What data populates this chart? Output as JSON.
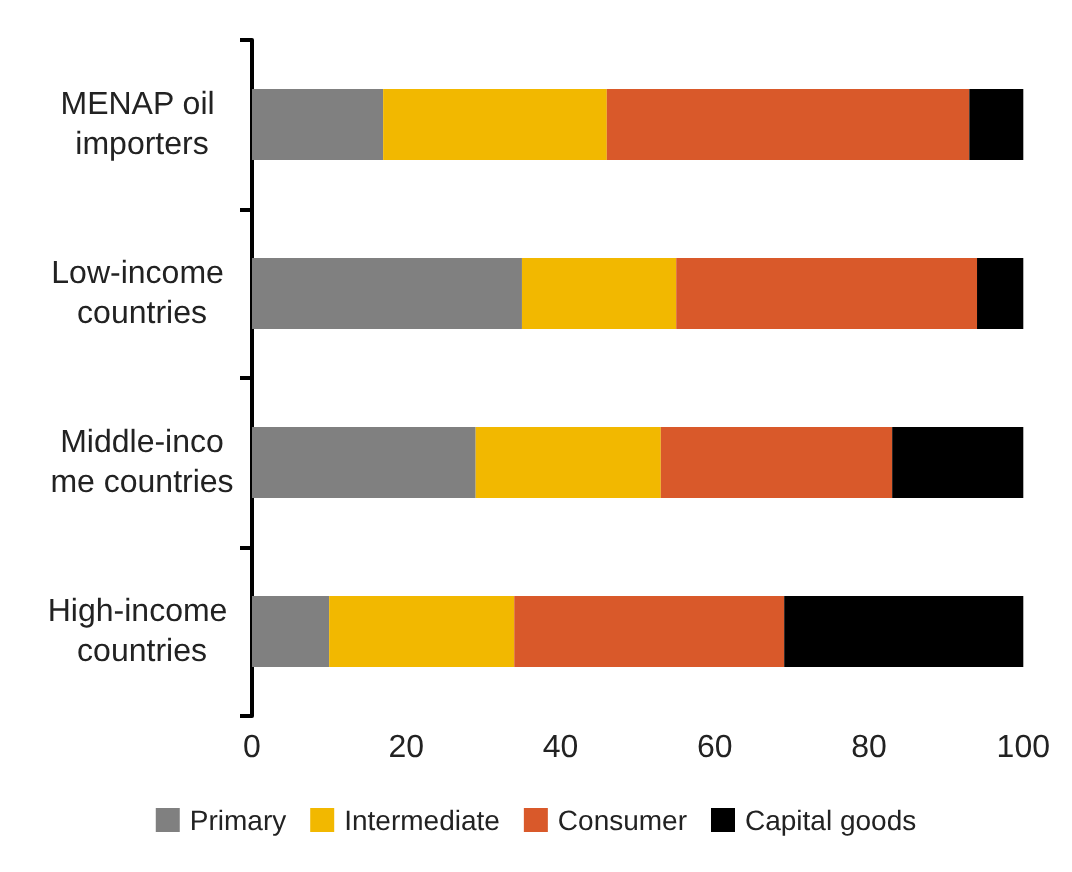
{
  "chart_data": {
    "type": "bar",
    "orientation": "horizontal",
    "stacked": true,
    "categories": [
      "MENAP oil importers",
      "Low-income countries",
      "Middle-income countries",
      "High-income countries"
    ],
    "series": [
      {
        "name": "Primary",
        "color": "#808080",
        "values": [
          17,
          35,
          29,
          10
        ]
      },
      {
        "name": "Intermediate",
        "color": "#f2b800",
        "values": [
          29,
          20,
          24,
          24
        ]
      },
      {
        "name": "Consumer",
        "color": "#d9592a",
        "values": [
          47,
          39,
          30,
          35
        ]
      },
      {
        "name": "Capital goods",
        "color": "#000000",
        "values": [
          7,
          6,
          17,
          31
        ]
      }
    ],
    "xlim": [
      0,
      100
    ],
    "xticks": [
      0,
      20,
      40,
      60,
      80,
      100
    ],
    "grid": false,
    "legend": "bottom"
  }
}
